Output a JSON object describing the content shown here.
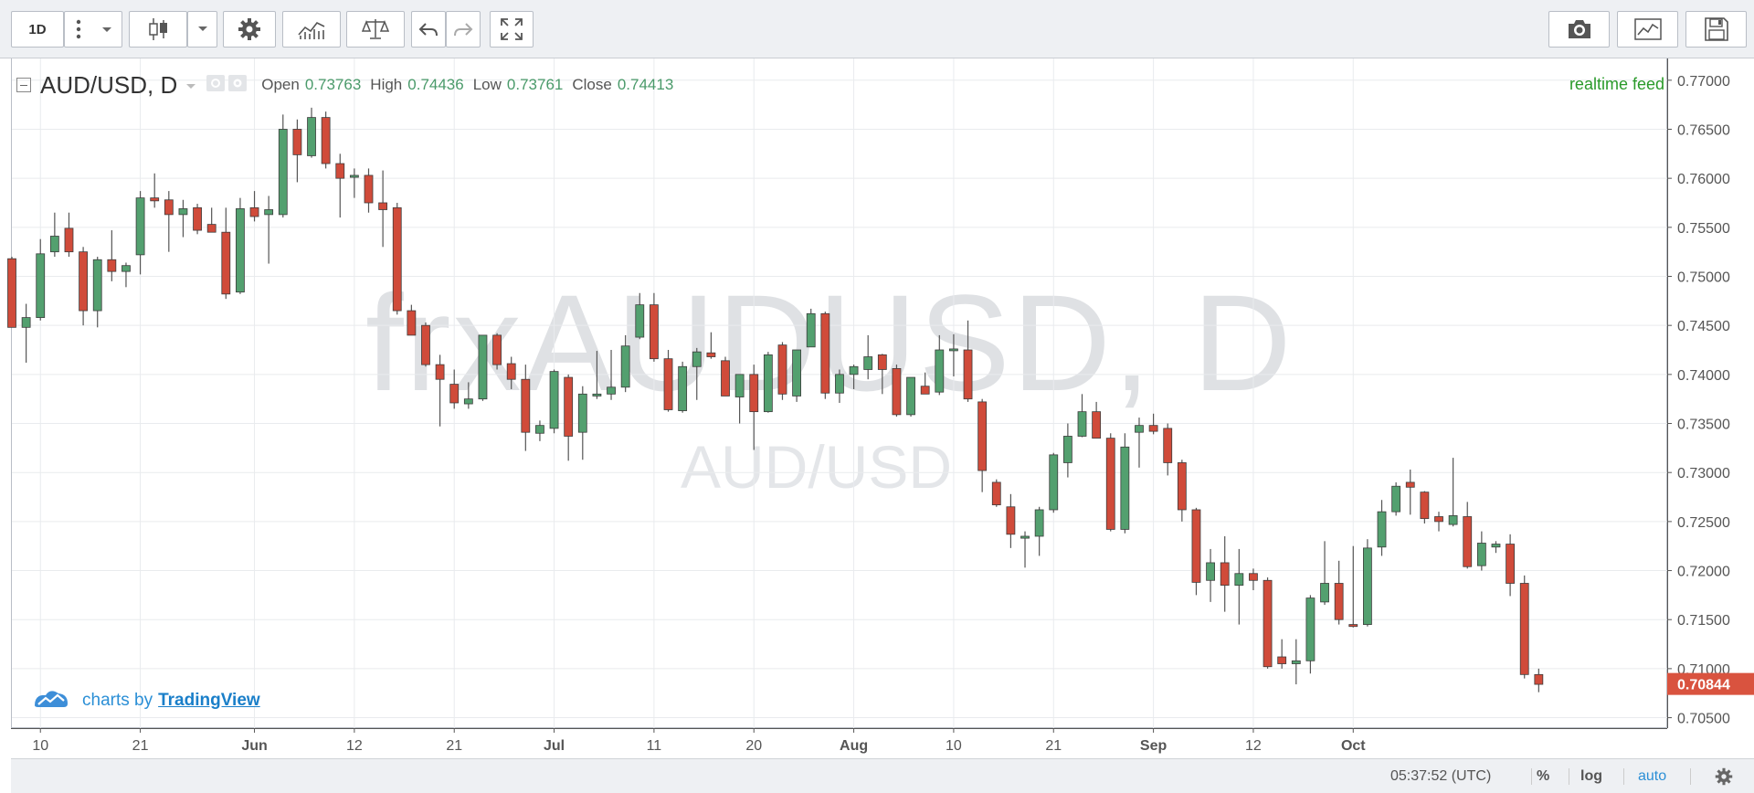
{
  "toolbar": {
    "interval_label": "1D",
    "icons": [
      "vertical-dots-icon",
      "chevron-down-icon",
      "candlestick-icon",
      "chevron-down-icon",
      "gear-icon",
      "indicators-icon",
      "compare-scales-icon",
      "undo-icon",
      "redo-icon",
      "fullscreen-icon",
      "camera-icon",
      "chart-line-icon",
      "save-icon"
    ]
  },
  "legend": {
    "symbol": "AUD/USD, D",
    "open_label": "Open",
    "open": "0.73763",
    "high_label": "High",
    "high": "0.74436",
    "low_label": "Low",
    "low": "0.73761",
    "close_label": "Close",
    "close": "0.74413"
  },
  "realtime_label": "realtime feed",
  "watermark": {
    "main": "frxAUDUSD, D",
    "sub": "AUD/USD"
  },
  "branding": {
    "prefix": "charts by",
    "name": "TradingView"
  },
  "status": {
    "time": "05:37:52 (UTC)",
    "percent": "%",
    "log": "log",
    "auto": "auto"
  },
  "colors": {
    "up": "#53a06f",
    "down": "#d04b3a",
    "accent": "#2b8fd6",
    "last_price_bg": "#d9533f"
  },
  "chart_data": {
    "type": "candlestick",
    "price_axis": {
      "ticks": [
        "0.70500",
        "0.71000",
        "0.71500",
        "0.72000",
        "0.72500",
        "0.73000",
        "0.73500",
        "0.74000",
        "0.74500",
        "0.75000",
        "0.75500",
        "0.76000",
        "0.76500",
        "0.77000"
      ],
      "range": [
        0.7044,
        0.7711
      ],
      "last_price": "0.70844"
    },
    "time_axis": {
      "labels": [
        {
          "text": "10",
          "index": 2
        },
        {
          "text": "21",
          "index": 9
        },
        {
          "text": "Jun",
          "index": 17
        },
        {
          "text": "12",
          "index": 24
        },
        {
          "text": "21",
          "index": 31
        },
        {
          "text": "Jul",
          "index": 38
        },
        {
          "text": "11",
          "index": 45
        },
        {
          "text": "20",
          "index": 52
        },
        {
          "text": "Aug",
          "index": 59
        },
        {
          "text": "10",
          "index": 66
        },
        {
          "text": "21",
          "index": 73
        },
        {
          "text": "Sep",
          "index": 80
        },
        {
          "text": "12",
          "index": 87
        },
        {
          "text": "Oct",
          "index": 94
        }
      ]
    },
    "candles": [
      {
        "o": 0.7518,
        "h": 0.752,
        "l": 0.7448,
        "c": 0.7448
      },
      {
        "o": 0.7448,
        "h": 0.7472,
        "l": 0.7412,
        "c": 0.7458
      },
      {
        "o": 0.7458,
        "h": 0.7538,
        "l": 0.7455,
        "c": 0.7523
      },
      {
        "o": 0.7525,
        "h": 0.7565,
        "l": 0.752,
        "c": 0.7541
      },
      {
        "o": 0.7549,
        "h": 0.7565,
        "l": 0.752,
        "c": 0.7525
      },
      {
        "o": 0.7525,
        "h": 0.753,
        "l": 0.745,
        "c": 0.7465
      },
      {
        "o": 0.7465,
        "h": 0.752,
        "l": 0.7448,
        "c": 0.7517
      },
      {
        "o": 0.7517,
        "h": 0.7547,
        "l": 0.7495,
        "c": 0.7505
      },
      {
        "o": 0.7505,
        "h": 0.7514,
        "l": 0.7489,
        "c": 0.7511
      },
      {
        "o": 0.7522,
        "h": 0.7587,
        "l": 0.7502,
        "c": 0.758
      },
      {
        "o": 0.758,
        "h": 0.7605,
        "l": 0.757,
        "c": 0.7577
      },
      {
        "o": 0.7578,
        "h": 0.7587,
        "l": 0.7525,
        "c": 0.7563
      },
      {
        "o": 0.7563,
        "h": 0.7578,
        "l": 0.754,
        "c": 0.7569
      },
      {
        "o": 0.757,
        "h": 0.7574,
        "l": 0.7543,
        "c": 0.7547
      },
      {
        "o": 0.7553,
        "h": 0.757,
        "l": 0.7545,
        "c": 0.7545
      },
      {
        "o": 0.7545,
        "h": 0.757,
        "l": 0.7477,
        "c": 0.7482
      },
      {
        "o": 0.7484,
        "h": 0.758,
        "l": 0.7482,
        "c": 0.7569
      },
      {
        "o": 0.757,
        "h": 0.7587,
        "l": 0.7556,
        "c": 0.7561
      },
      {
        "o": 0.7563,
        "h": 0.7582,
        "l": 0.7513,
        "c": 0.7568
      },
      {
        "o": 0.7563,
        "h": 0.7665,
        "l": 0.756,
        "c": 0.765
      },
      {
        "o": 0.765,
        "h": 0.766,
        "l": 0.7596,
        "c": 0.7624
      },
      {
        "o": 0.7623,
        "h": 0.7672,
        "l": 0.7621,
        "c": 0.7662
      },
      {
        "o": 0.7662,
        "h": 0.7668,
        "l": 0.761,
        "c": 0.7615
      },
      {
        "o": 0.7615,
        "h": 0.7625,
        "l": 0.756,
        "c": 0.76
      },
      {
        "o": 0.7601,
        "h": 0.761,
        "l": 0.758,
        "c": 0.7603
      },
      {
        "o": 0.7603,
        "h": 0.761,
        "l": 0.7565,
        "c": 0.7575
      },
      {
        "o": 0.7575,
        "h": 0.7608,
        "l": 0.753,
        "c": 0.7568
      },
      {
        "o": 0.757,
        "h": 0.7575,
        "l": 0.7461,
        "c": 0.7465
      },
      {
        "o": 0.7465,
        "h": 0.7471,
        "l": 0.744,
        "c": 0.744
      },
      {
        "o": 0.745,
        "h": 0.7453,
        "l": 0.7408,
        "c": 0.741
      },
      {
        "o": 0.741,
        "h": 0.742,
        "l": 0.7347,
        "c": 0.7395
      },
      {
        "o": 0.739,
        "h": 0.7405,
        "l": 0.7365,
        "c": 0.7371
      },
      {
        "o": 0.737,
        "h": 0.7392,
        "l": 0.7365,
        "c": 0.7375
      },
      {
        "o": 0.7375,
        "h": 0.744,
        "l": 0.7373,
        "c": 0.744
      },
      {
        "o": 0.744,
        "h": 0.7442,
        "l": 0.7405,
        "c": 0.741
      },
      {
        "o": 0.7411,
        "h": 0.7418,
        "l": 0.7385,
        "c": 0.7395
      },
      {
        "o": 0.7395,
        "h": 0.741,
        "l": 0.7322,
        "c": 0.7341
      },
      {
        "o": 0.734,
        "h": 0.7353,
        "l": 0.7332,
        "c": 0.7348
      },
      {
        "o": 0.7345,
        "h": 0.7405,
        "l": 0.734,
        "c": 0.7403
      },
      {
        "o": 0.7397,
        "h": 0.74,
        "l": 0.7312,
        "c": 0.7337
      },
      {
        "o": 0.7341,
        "h": 0.7388,
        "l": 0.7313,
        "c": 0.738
      },
      {
        "o": 0.7378,
        "h": 0.7424,
        "l": 0.7375,
        "c": 0.738
      },
      {
        "o": 0.738,
        "h": 0.7425,
        "l": 0.7374,
        "c": 0.7387
      },
      {
        "o": 0.7387,
        "h": 0.744,
        "l": 0.7382,
        "c": 0.7429
      },
      {
        "o": 0.7438,
        "h": 0.7483,
        "l": 0.7436,
        "c": 0.7471
      },
      {
        "o": 0.7471,
        "h": 0.7483,
        "l": 0.7413,
        "c": 0.7416
      },
      {
        "o": 0.7416,
        "h": 0.7425,
        "l": 0.7362,
        "c": 0.7364
      },
      {
        "o": 0.7363,
        "h": 0.7413,
        "l": 0.7361,
        "c": 0.7408
      },
      {
        "o": 0.7408,
        "h": 0.7427,
        "l": 0.7374,
        "c": 0.7423
      },
      {
        "o": 0.7422,
        "h": 0.7443,
        "l": 0.7416,
        "c": 0.7418
      },
      {
        "o": 0.7414,
        "h": 0.7418,
        "l": 0.7378,
        "c": 0.7378
      },
      {
        "o": 0.7377,
        "h": 0.74,
        "l": 0.735,
        "c": 0.74
      },
      {
        "o": 0.74,
        "h": 0.741,
        "l": 0.7323,
        "c": 0.7362
      },
      {
        "o": 0.7362,
        "h": 0.7423,
        "l": 0.7361,
        "c": 0.742
      },
      {
        "o": 0.743,
        "h": 0.7433,
        "l": 0.7374,
        "c": 0.738
      },
      {
        "o": 0.7378,
        "h": 0.7425,
        "l": 0.7372,
        "c": 0.7425
      },
      {
        "o": 0.7428,
        "h": 0.7467,
        "l": 0.7428,
        "c": 0.7462
      },
      {
        "o": 0.7462,
        "h": 0.7464,
        "l": 0.7375,
        "c": 0.7381
      },
      {
        "o": 0.7381,
        "h": 0.7405,
        "l": 0.7371,
        "c": 0.74
      },
      {
        "o": 0.74,
        "h": 0.741,
        "l": 0.7385,
        "c": 0.7408
      },
      {
        "o": 0.7405,
        "h": 0.744,
        "l": 0.7395,
        "c": 0.7418
      },
      {
        "o": 0.742,
        "h": 0.7421,
        "l": 0.738,
        "c": 0.7405
      },
      {
        "o": 0.7406,
        "h": 0.741,
        "l": 0.7357,
        "c": 0.7359
      },
      {
        "o": 0.7359,
        "h": 0.7396,
        "l": 0.7357,
        "c": 0.7397
      },
      {
        "o": 0.7388,
        "h": 0.7402,
        "l": 0.738,
        "c": 0.738
      },
      {
        "o": 0.7382,
        "h": 0.744,
        "l": 0.7379,
        "c": 0.7425
      },
      {
        "o": 0.7425,
        "h": 0.7441,
        "l": 0.7398,
        "c": 0.7426
      },
      {
        "o": 0.7425,
        "h": 0.7455,
        "l": 0.7372,
        "c": 0.7375
      },
      {
        "o": 0.7372,
        "h": 0.7375,
        "l": 0.728,
        "c": 0.7302
      },
      {
        "o": 0.729,
        "h": 0.7293,
        "l": 0.7265,
        "c": 0.7267
      },
      {
        "o": 0.7265,
        "h": 0.7278,
        "l": 0.7223,
        "c": 0.7237
      },
      {
        "o": 0.7233,
        "h": 0.724,
        "l": 0.7203,
        "c": 0.7235
      },
      {
        "o": 0.7235,
        "h": 0.7265,
        "l": 0.7215,
        "c": 0.7262
      },
      {
        "o": 0.7262,
        "h": 0.732,
        "l": 0.7259,
        "c": 0.7318
      },
      {
        "o": 0.731,
        "h": 0.735,
        "l": 0.7295,
        "c": 0.7337
      },
      {
        "o": 0.7337,
        "h": 0.738,
        "l": 0.7336,
        "c": 0.7362
      },
      {
        "o": 0.7362,
        "h": 0.7372,
        "l": 0.7335,
        "c": 0.7335
      },
      {
        "o": 0.7335,
        "h": 0.734,
        "l": 0.724,
        "c": 0.7242
      },
      {
        "o": 0.7242,
        "h": 0.734,
        "l": 0.7238,
        "c": 0.7326
      },
      {
        "o": 0.7341,
        "h": 0.7356,
        "l": 0.7305,
        "c": 0.7348
      },
      {
        "o": 0.7348,
        "h": 0.736,
        "l": 0.7339,
        "c": 0.7342
      },
      {
        "o": 0.7345,
        "h": 0.735,
        "l": 0.7297,
        "c": 0.731
      },
      {
        "o": 0.731,
        "h": 0.7313,
        "l": 0.725,
        "c": 0.7262
      },
      {
        "o": 0.7262,
        "h": 0.7264,
        "l": 0.7175,
        "c": 0.7188
      },
      {
        "o": 0.719,
        "h": 0.7222,
        "l": 0.7168,
        "c": 0.7208
      },
      {
        "o": 0.7208,
        "h": 0.7235,
        "l": 0.7158,
        "c": 0.7185
      },
      {
        "o": 0.7185,
        "h": 0.7222,
        "l": 0.7145,
        "c": 0.7197
      },
      {
        "o": 0.7197,
        "h": 0.7202,
        "l": 0.718,
        "c": 0.719
      },
      {
        "o": 0.719,
        "h": 0.7193,
        "l": 0.71,
        "c": 0.7102
      },
      {
        "o": 0.7112,
        "h": 0.713,
        "l": 0.71,
        "c": 0.7105
      },
      {
        "o": 0.7105,
        "h": 0.713,
        "l": 0.7084,
        "c": 0.7108
      },
      {
        "o": 0.7108,
        "h": 0.7175,
        "l": 0.7095,
        "c": 0.7172
      },
      {
        "o": 0.7168,
        "h": 0.723,
        "l": 0.7165,
        "c": 0.7187
      },
      {
        "o": 0.7187,
        "h": 0.721,
        "l": 0.7145,
        "c": 0.715
      },
      {
        "o": 0.7145,
        "h": 0.7225,
        "l": 0.7142,
        "c": 0.7143
      },
      {
        "o": 0.7145,
        "h": 0.7232,
        "l": 0.7143,
        "c": 0.7223
      },
      {
        "o": 0.7224,
        "h": 0.7272,
        "l": 0.7215,
        "c": 0.726
      },
      {
        "o": 0.726,
        "h": 0.729,
        "l": 0.7256,
        "c": 0.7286
      },
      {
        "o": 0.729,
        "h": 0.7303,
        "l": 0.7257,
        "c": 0.7285
      },
      {
        "o": 0.728,
        "h": 0.7281,
        "l": 0.7248,
        "c": 0.7253
      },
      {
        "o": 0.7255,
        "h": 0.726,
        "l": 0.724,
        "c": 0.725
      },
      {
        "o": 0.7247,
        "h": 0.7315,
        "l": 0.7245,
        "c": 0.7256
      },
      {
        "o": 0.7255,
        "h": 0.727,
        "l": 0.7202,
        "c": 0.7204
      },
      {
        "o": 0.7205,
        "h": 0.724,
        "l": 0.72,
        "c": 0.7228
      },
      {
        "o": 0.7224,
        "h": 0.723,
        "l": 0.7218,
        "c": 0.7227
      },
      {
        "o": 0.7227,
        "h": 0.7237,
        "l": 0.7174,
        "c": 0.7187
      },
      {
        "o": 0.7187,
        "h": 0.7195,
        "l": 0.709,
        "c": 0.7094
      },
      {
        "o": 0.7094,
        "h": 0.71,
        "l": 0.7076,
        "c": 0.7084
      }
    ]
  }
}
